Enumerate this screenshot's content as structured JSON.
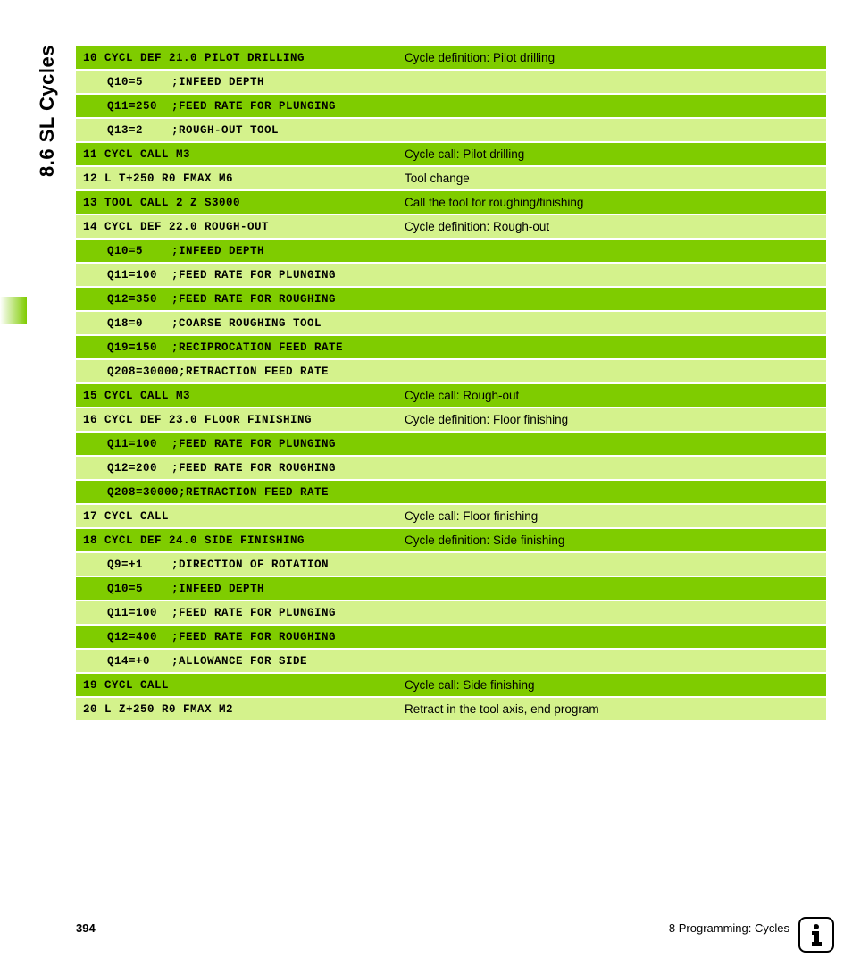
{
  "section_title": "8.6 SL Cycles",
  "page_number": "394",
  "chapter_label": "8 Programming: Cycles",
  "rows": [
    {
      "code": "10 CYCL DEF 21.0 PILOT DRILLING",
      "desc": "Cycle definition: Pilot drilling",
      "shade": "dark",
      "indent": false
    },
    {
      "code": "Q10=5    ;INFEED DEPTH",
      "desc": "",
      "shade": "light",
      "indent": true
    },
    {
      "code": "Q11=250  ;FEED RATE FOR PLUNGING",
      "desc": "",
      "shade": "dark",
      "indent": true
    },
    {
      "code": "Q13=2    ;ROUGH-OUT TOOL",
      "desc": "",
      "shade": "light",
      "indent": true
    },
    {
      "code": "11 CYCL CALL M3",
      "desc": "Cycle call: Pilot drilling",
      "shade": "dark",
      "indent": false
    },
    {
      "code": "12 L T+250 R0 FMAX M6",
      "desc": "Tool change",
      "shade": "light",
      "indent": false
    },
    {
      "code": "13 TOOL CALL 2 Z S3000",
      "desc": "Call the tool for roughing/finishing",
      "shade": "dark",
      "indent": false
    },
    {
      "code": "14 CYCL DEF 22.0 ROUGH-OUT",
      "desc": "Cycle definition: Rough-out",
      "shade": "light",
      "indent": false
    },
    {
      "code": "Q10=5    ;INFEED DEPTH",
      "desc": "",
      "shade": "dark",
      "indent": true
    },
    {
      "code": "Q11=100  ;FEED RATE FOR PLUNGING",
      "desc": "",
      "shade": "light",
      "indent": true
    },
    {
      "code": "Q12=350  ;FEED RATE FOR ROUGHING",
      "desc": "",
      "shade": "dark",
      "indent": true
    },
    {
      "code": "Q18=0    ;COARSE ROUGHING TOOL",
      "desc": "",
      "shade": "light",
      "indent": true
    },
    {
      "code": "Q19=150  ;RECIPROCATION FEED RATE",
      "desc": "",
      "shade": "dark",
      "indent": true
    },
    {
      "code": "Q208=30000;RETRACTION FEED RATE",
      "desc": "",
      "shade": "light",
      "indent": true
    },
    {
      "code": "15 CYCL CALL M3",
      "desc": "Cycle call: Rough-out",
      "shade": "dark",
      "indent": false
    },
    {
      "code": "16 CYCL DEF 23.0 FLOOR FINISHING",
      "desc": "Cycle definition: Floor finishing",
      "shade": "light",
      "indent": false
    },
    {
      "code": "Q11=100  ;FEED RATE FOR PLUNGING",
      "desc": "",
      "shade": "dark",
      "indent": true
    },
    {
      "code": "Q12=200  ;FEED RATE FOR ROUGHING",
      "desc": "",
      "shade": "light",
      "indent": true
    },
    {
      "code": "Q208=30000;RETRACTION FEED RATE",
      "desc": "",
      "shade": "dark",
      "indent": true
    },
    {
      "code": "17 CYCL CALL",
      "desc": "Cycle call: Floor finishing",
      "shade": "light",
      "indent": false
    },
    {
      "code": "18 CYCL DEF 24.0 SIDE FINISHING",
      "desc": "Cycle definition: Side finishing",
      "shade": "dark",
      "indent": false
    },
    {
      "code": "Q9=+1    ;DIRECTION OF ROTATION",
      "desc": "",
      "shade": "light",
      "indent": true
    },
    {
      "code": "Q10=5    ;INFEED DEPTH",
      "desc": "",
      "shade": "dark",
      "indent": true
    },
    {
      "code": "Q11=100  ;FEED RATE FOR PLUNGING",
      "desc": "",
      "shade": "light",
      "indent": true
    },
    {
      "code": "Q12=400  ;FEED RATE FOR ROUGHING",
      "desc": "",
      "shade": "dark",
      "indent": true
    },
    {
      "code": "Q14=+0   ;ALLOWANCE FOR SIDE",
      "desc": "",
      "shade": "light",
      "indent": true
    },
    {
      "code": "19 CYCL CALL",
      "desc": "Cycle call: Side finishing",
      "shade": "dark",
      "indent": false
    },
    {
      "code": "20 L Z+250 R0 FMAX M2",
      "desc": "Retract in the tool axis, end program",
      "shade": "light",
      "indent": false
    }
  ]
}
